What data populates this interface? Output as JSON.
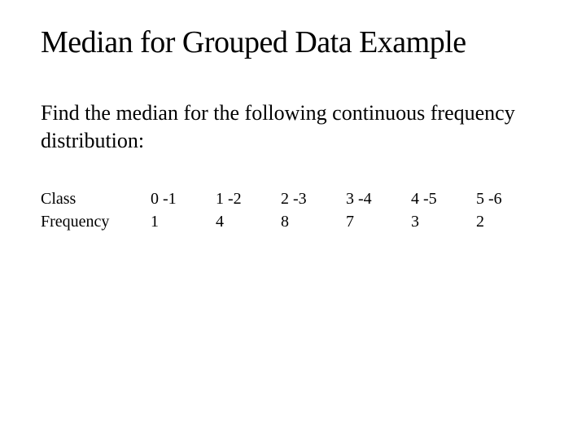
{
  "title": "Median for Grouped Data Example",
  "description": "Find the median for the following continuous frequency distribution:",
  "table": {
    "row_labels": [
      "Class",
      "Frequency"
    ],
    "columns": [
      {
        "class": "0 -1",
        "frequency": "1"
      },
      {
        "class": "1 -2",
        "frequency": "4"
      },
      {
        "class": "2 -3",
        "frequency": "8"
      },
      {
        "class": "3 -4",
        "frequency": "7"
      },
      {
        "class": "4 -5",
        "frequency": "3"
      },
      {
        "class": "5 -6",
        "frequency": "2"
      }
    ]
  },
  "styling": {
    "background_color": "#ffffff",
    "text_color": "#000000",
    "font_family": "Times New Roman",
    "title_fontsize": 38,
    "description_fontsize": 26,
    "table_fontsize": 20
  }
}
